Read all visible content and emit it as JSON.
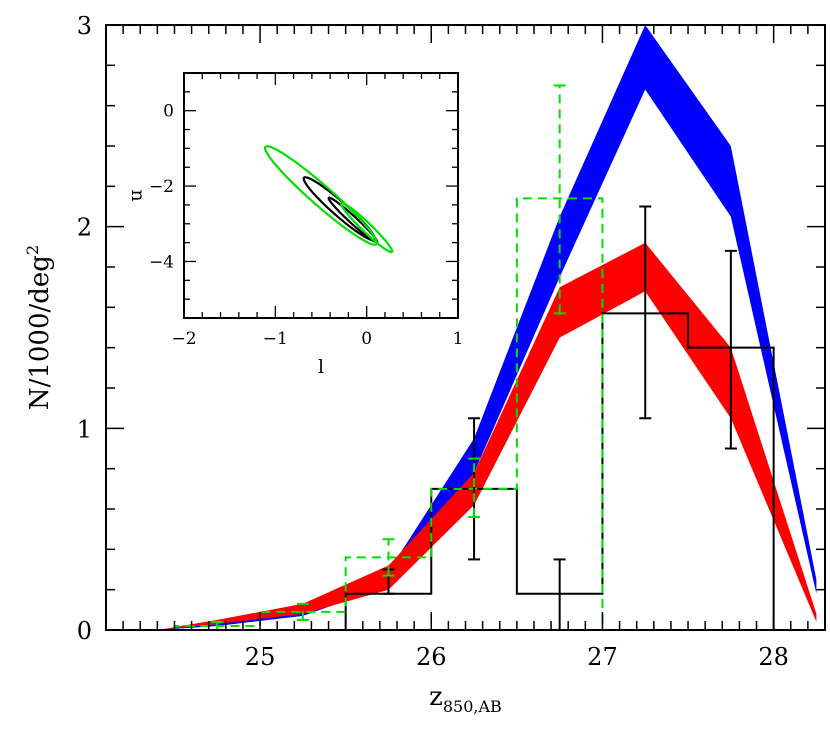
{
  "chart_data": [
    {
      "type": "line",
      "title": "",
      "xlabel": "z",
      "xlabel_sub": "850,AB",
      "ylabel": "N/1000/deg",
      "ylabel_sup": "2",
      "xlim": [
        24.1,
        28.3
      ],
      "ylim": [
        0,
        3
      ],
      "x_ticks": [
        25,
        26,
        27,
        28
      ],
      "y_ticks": [
        0,
        1,
        2,
        3
      ],
      "x_tick_labels": [
        "25",
        "26",
        "27",
        "28"
      ],
      "y_tick_labels": [
        "0",
        "1",
        "2",
        "3"
      ],
      "bands": [
        {
          "color": "#0000ff",
          "x": [
            24.4,
            24.75,
            25.25,
            25.75,
            26.25,
            26.75,
            27.25,
            27.75,
            28.25
          ],
          "lower": [
            0.0,
            0.02,
            0.07,
            0.22,
            0.78,
            1.75,
            2.68,
            2.05,
            0.18
          ],
          "upper": [
            0.0,
            0.03,
            0.1,
            0.29,
            0.95,
            2.05,
            3.06,
            2.4,
            0.25
          ]
        },
        {
          "color": "#ff0000",
          "x": [
            24.4,
            24.75,
            25.25,
            25.75,
            26.25,
            26.75,
            27.25,
            27.75,
            28.25
          ],
          "lower": [
            0.0,
            0.03,
            0.08,
            0.2,
            0.62,
            1.45,
            1.68,
            1.05,
            0.04
          ],
          "upper": [
            0.0,
            0.05,
            0.13,
            0.32,
            0.78,
            1.7,
            1.92,
            1.4,
            0.08
          ]
        }
      ],
      "histograms": [
        {
          "color": "#000000",
          "dashed": false,
          "edges": [
            25.5,
            26.0,
            26.5,
            27.0,
            27.5,
            28.0
          ],
          "values": [
            0.18,
            0.7,
            0.18,
            1.57,
            1.4
          ],
          "error_points": [
            {
              "x": 25.75,
              "y": 0.18,
              "lo": 0.18,
              "hi": 0.3
            },
            {
              "x": 26.25,
              "y": 0.7,
              "lo": 0.35,
              "hi": 1.05
            },
            {
              "x": 26.75,
              "y": 0.18,
              "lo": 0.0,
              "hi": 0.35
            },
            {
              "x": 27.25,
              "y": 1.57,
              "lo": 1.05,
              "hi": 2.1
            },
            {
              "x": 27.75,
              "y": 1.4,
              "lo": 0.9,
              "hi": 1.88
            }
          ]
        },
        {
          "color": "#00e000",
          "dashed": true,
          "edges": [
            24.5,
            25.0,
            25.5,
            26.0,
            26.5,
            27.0
          ],
          "values": [
            0.02,
            0.09,
            0.36,
            0.7,
            2.14
          ],
          "error_points": [
            {
              "x": 24.75,
              "y": 0.02,
              "lo": 0.0,
              "hi": 0.04
            },
            {
              "x": 25.25,
              "y": 0.09,
              "lo": 0.05,
              "hi": 0.13
            },
            {
              "x": 25.75,
              "y": 0.36,
              "lo": 0.27,
              "hi": 0.45
            },
            {
              "x": 26.25,
              "y": 0.7,
              "lo": 0.56,
              "hi": 0.85
            },
            {
              "x": 26.75,
              "y": 2.14,
              "lo": 1.57,
              "hi": 2.7
            }
          ]
        }
      ]
    },
    {
      "type": "line",
      "title": "",
      "xlabel": "l",
      "ylabel": "n",
      "xlim": [
        -2,
        1
      ],
      "ylim": [
        -5.5,
        1
      ],
      "x_ticks": [
        -2,
        -1,
        0,
        1
      ],
      "y_ticks": [
        0,
        -2,
        -4
      ],
      "x_tick_labels": [
        "−2",
        "−1",
        "0",
        "1"
      ],
      "y_tick_labels": [
        "0",
        "−2",
        "−4"
      ],
      "contours": [
        {
          "color": "#000000",
          "center": [
            -0.15,
            -2.9
          ],
          "semi_major": 1.55,
          "semi_minor": 0.22,
          "slope": -2.2
        },
        {
          "color": "#000000",
          "center": [
            -0.3,
            -2.6
          ],
          "semi_major": 2.1,
          "semi_minor": 0.42,
          "slope": -2.1
        },
        {
          "color": "#00e000",
          "center": [
            0.0,
            -3.1
          ],
          "semi_major": 1.75,
          "semi_minor": 0.3,
          "slope": -2.3
        },
        {
          "color": "#00e000",
          "center": [
            -0.5,
            -2.25
          ],
          "semi_major": 3.3,
          "semi_minor": 0.6,
          "slope": -2.1
        }
      ]
    }
  ]
}
